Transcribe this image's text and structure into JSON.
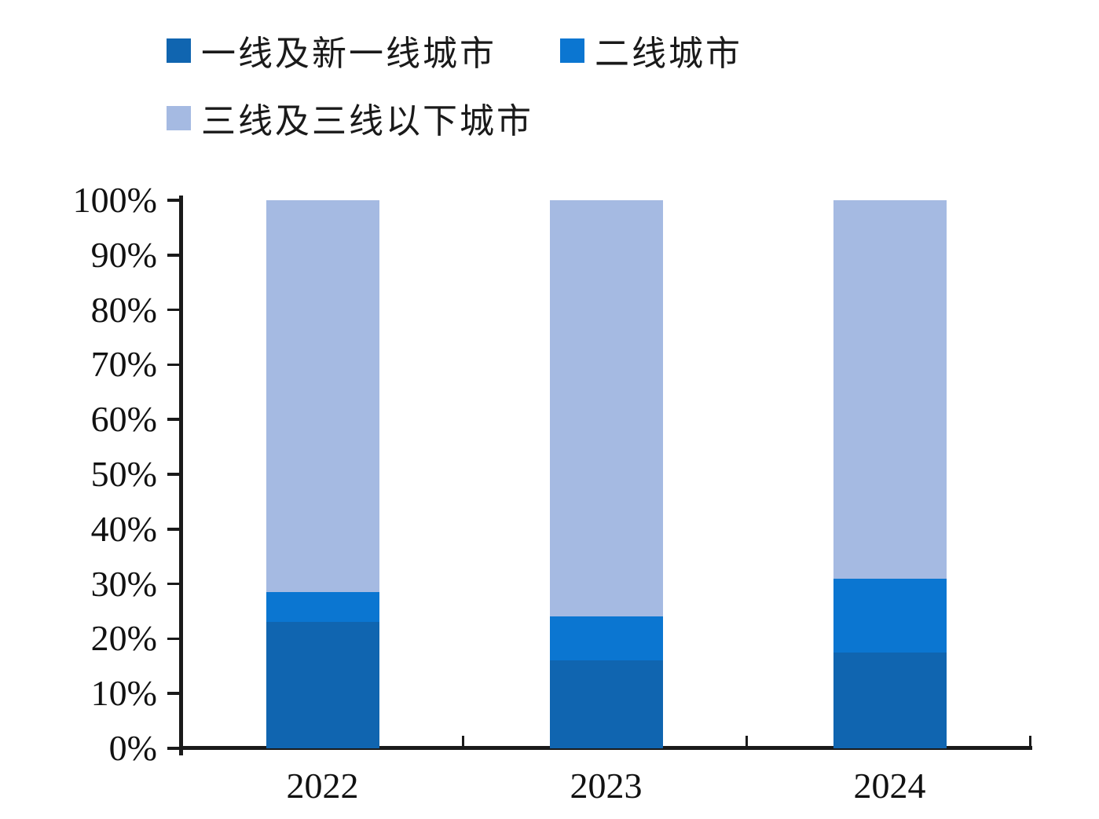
{
  "chart_data": {
    "type": "bar",
    "stacked": true,
    "title": "",
    "categories": [
      "2022",
      "2023",
      "2024"
    ],
    "series": [
      {
        "name": "一线及新一线城市",
        "color": "#1065b0",
        "values": [
          23,
          16,
          17.5
        ]
      },
      {
        "name": "二线城市",
        "color": "#0b76d1",
        "values": [
          5.5,
          8,
          13.5
        ]
      },
      {
        "name": "三线及三线以下城市",
        "color": "#a5bae2",
        "values": [
          71.5,
          76,
          69
        ]
      }
    ],
    "ylim": [
      0,
      100
    ],
    "y_tick_labels": [
      "0%",
      "10%",
      "20%",
      "30%",
      "40%",
      "50%",
      "60%",
      "70%",
      "80%",
      "90%",
      "100%"
    ],
    "xlabel": "",
    "ylabel": "",
    "legend_position": "top-left",
    "grid": false,
    "axis_color": "#1a1a1a",
    "background": "#ffffff"
  }
}
